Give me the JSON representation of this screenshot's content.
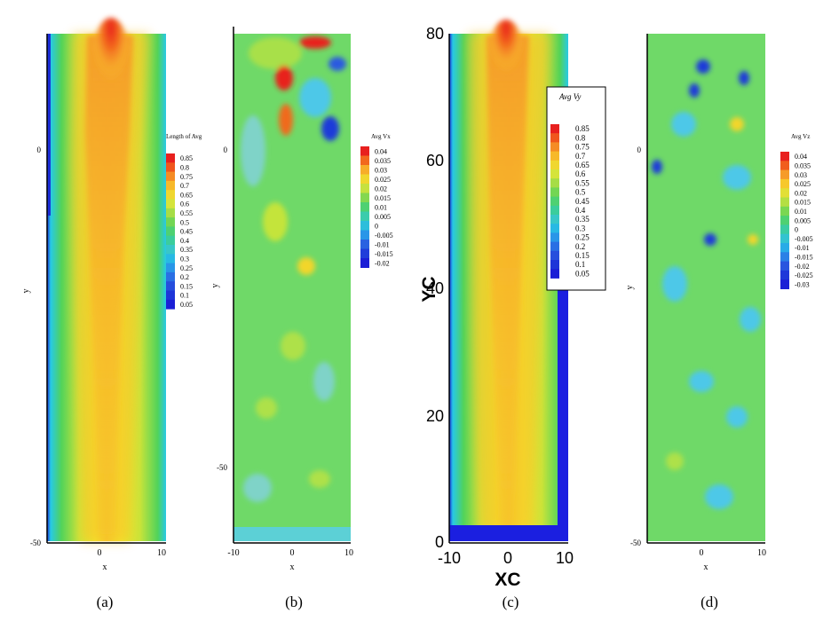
{
  "chart_data": [
    {
      "type": "heatmap",
      "panel_label": "(a)",
      "title": "",
      "xlabel": "x",
      "ylabel": "y",
      "xlim": [
        -10,
        10
      ],
      "ylim": [
        -50,
        0
      ],
      "x_ticks": [
        "0",
        "10"
      ],
      "y_ticks": [
        "0",
        "-50"
      ],
      "legend_title": "Length of Avg",
      "legend_levels": [
        "0.85",
        "0.8",
        "0.75",
        "0.7",
        "0.65",
        "0.6",
        "0.55",
        "0.5",
        "0.45",
        "0.4",
        "0.35",
        "0.3",
        "0.25",
        "0.2",
        "0.15",
        "0.1",
        "0.05"
      ],
      "grid": false,
      "pattern": "jet"
    },
    {
      "type": "heatmap",
      "panel_label": "(b)",
      "title": "",
      "xlabel": "x",
      "ylabel": "y",
      "xlim": [
        -10,
        10
      ],
      "ylim": [
        -50,
        0
      ],
      "x_ticks": [
        "-10",
        "0",
        "10"
      ],
      "y_ticks": [
        "0",
        "-50"
      ],
      "legend_title": "Avg Vx",
      "legend_levels": [
        "0.04",
        "0.035",
        "0.03",
        "0.025",
        "0.02",
        "0.015",
        "0.01",
        "0.005",
        "0",
        "-0.005",
        "-0.01",
        "-0.015",
        "-0.02"
      ],
      "grid": false,
      "pattern": "noise"
    },
    {
      "type": "heatmap",
      "panel_label": "(c)",
      "title": "",
      "xlabel": "XC",
      "ylabel": "YC",
      "xlim": [
        -10,
        10
      ],
      "ylim": [
        0,
        80
      ],
      "x_ticks": [
        "-10",
        "0",
        "10"
      ],
      "y_ticks": [
        "0",
        "20",
        "40",
        "60",
        "80"
      ],
      "legend_title": "Avg Vy",
      "legend_levels": [
        "0.85",
        "0.8",
        "0.75",
        "0.7",
        "0.65",
        "0.6",
        "0.55",
        "0.5",
        "0.45",
        "0.4",
        "0.35",
        "0.3",
        "0.25",
        "0.2",
        "0.15",
        "0.1",
        "0.05"
      ],
      "grid": false,
      "pattern": "jet"
    },
    {
      "type": "heatmap",
      "panel_label": "(d)",
      "title": "",
      "xlabel": "x",
      "ylabel": "y",
      "xlim": [
        -10,
        10
      ],
      "ylim": [
        -50,
        0
      ],
      "x_ticks": [
        "0",
        "10"
      ],
      "y_ticks": [
        "0",
        "-50"
      ],
      "legend_title": "Avg Vz",
      "legend_levels": [
        "0.04",
        "0.035",
        "0.03",
        "0.025",
        "0.02",
        "0.015",
        "0.01",
        "0.005",
        "0",
        "-0.005",
        "-0.01",
        "-0.015",
        "-0.02",
        "-0.025",
        "-0.03"
      ],
      "grid": false,
      "pattern": "noise"
    }
  ]
}
